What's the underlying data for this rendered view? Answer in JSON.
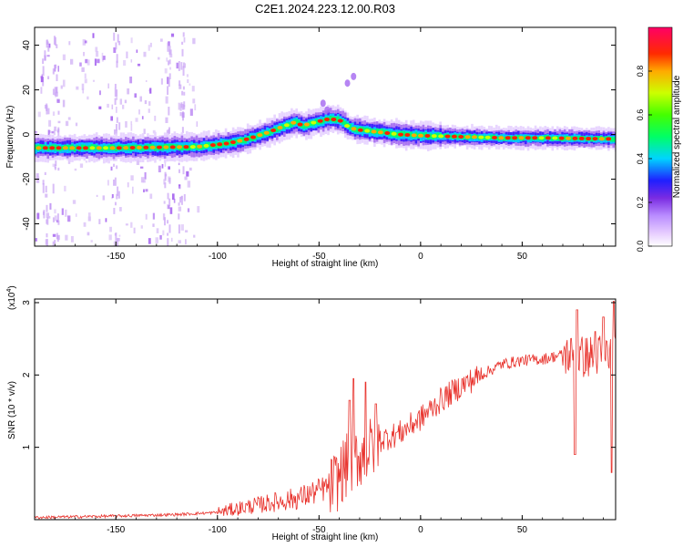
{
  "title": "C2E1.2024.223.12.00.R03",
  "chart_data": [
    {
      "type": "heatmap",
      "xlabel": "Height of straight line (km)",
      "ylabel": "Frequency (Hz)",
      "xlim": [
        -190,
        96
      ],
      "ylim": [
        -50,
        48
      ],
      "xticks": [
        -150,
        -100,
        -50,
        0,
        50
      ],
      "yticks": [
        -40,
        -20,
        0,
        20,
        40
      ],
      "ridge": {
        "x": [
          -190,
          -150,
          -110,
          -95,
          -85,
          -75,
          -68,
          -62,
          -58,
          -52,
          -45,
          -40,
          -35,
          -30,
          -25,
          -20,
          -15,
          -10,
          0,
          20,
          40,
          60,
          80,
          96
        ],
        "freq": [
          -6,
          -6,
          -5.5,
          -4,
          -2,
          1,
          3.5,
          5.5,
          4,
          5.5,
          7,
          6.5,
          3,
          2,
          1.5,
          1,
          0.5,
          0,
          -0.5,
          -1,
          -1.5,
          -1.5,
          -1.8,
          -2
        ]
      },
      "colorbar": {
        "label": "Normalized spectral amplitude",
        "range": [
          0,
          1
        ],
        "ticks": [
          0.0,
          0.2,
          0.4,
          0.6,
          0.8
        ],
        "tick_labels": [
          "0.0",
          "0.2",
          "0.4",
          "0.6",
          "0.8"
        ],
        "colors": [
          "#ffffff",
          "#cc99ff",
          "#8a2be2",
          "#2222ff",
          "#00e5ff",
          "#00ff33",
          "#ccff00",
          "#ff3300",
          "#ff0066"
        ]
      }
    },
    {
      "type": "line",
      "xlabel": "Height of straight line (km)",
      "ylabel": "SNR (10 * v/v)",
      "y_multiplier": "(x10",
      "y_multiplier_exp": "4",
      "y_multiplier_close": ")",
      "xlim": [
        -190,
        96
      ],
      "ylim": [
        0,
        3.05
      ],
      "xticks": [
        -150,
        -100,
        -50,
        0,
        50
      ],
      "yticks": [
        1,
        2,
        3
      ],
      "series": [
        {
          "color": "#e8312b",
          "trend": {
            "x": [
              -190,
              -150,
              -120,
              -100,
              -85,
              -70,
              -60,
              -50,
              -42,
              -38,
              -32,
              -28,
              -20,
              -10,
              0,
              10,
              20,
              30,
              40,
              50,
              60,
              70,
              80,
              96
            ],
            "y": [
              0.03,
              0.05,
              0.07,
              0.1,
              0.18,
              0.25,
              0.3,
              0.4,
              0.5,
              0.7,
              0.85,
              0.9,
              1.1,
              1.2,
              1.4,
              1.65,
              1.85,
              2.0,
              2.15,
              2.2,
              2.22,
              2.28,
              2.25,
              2.3
            ]
          },
          "spikes": [
            [
              -33,
              1.95
            ],
            [
              -35,
              1.65
            ],
            [
              -27,
              1.9
            ],
            [
              -22,
              1.6
            ],
            [
              76,
              0.9
            ],
            [
              77,
              2.9
            ],
            [
              94,
              0.65
            ],
            [
              95,
              3.02
            ],
            [
              86,
              2.6
            ],
            [
              90,
              2.8
            ]
          ]
        }
      ]
    }
  ]
}
